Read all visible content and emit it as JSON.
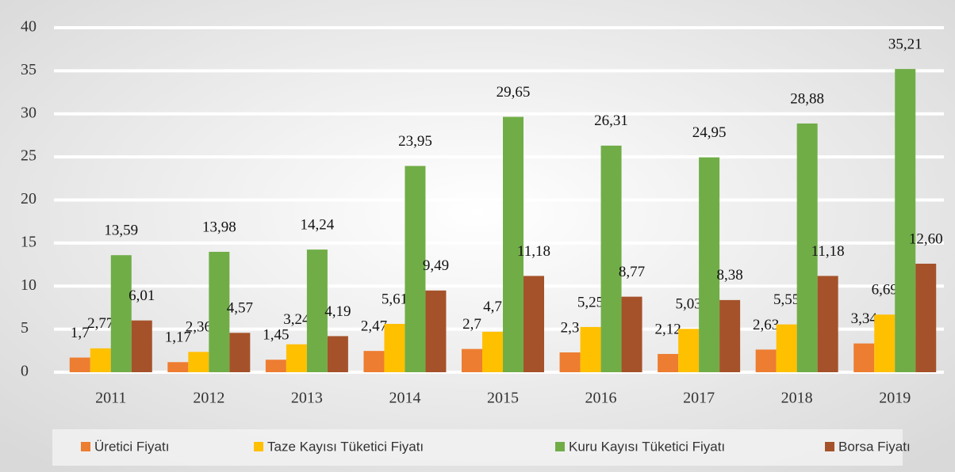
{
  "chart_data": {
    "type": "bar",
    "categories": [
      "2011",
      "2012",
      "2013",
      "2014",
      "2015",
      "2016",
      "2017",
      "2018",
      "2019"
    ],
    "series": [
      {
        "name": "Üretici Fiyatı",
        "color": "#ed7d31",
        "values": [
          1.7,
          1.17,
          1.45,
          2.47,
          2.7,
          2.3,
          2.12,
          2.63,
          3.34
        ],
        "value_labels": [
          "1,7",
          "1,17",
          "1,45",
          "2,47",
          "2,7",
          "2,3",
          "2,12",
          "2,63",
          "3,34"
        ]
      },
      {
        "name": "Taze Kayısı Tüketici Fiyatı",
        "color": "#ffc000",
        "values": [
          2.77,
          2.36,
          3.24,
          5.61,
          4.7,
          5.25,
          5.03,
          5.55,
          6.69
        ],
        "value_labels": [
          "2,77",
          "2,36",
          "3,24",
          "5,61",
          "4,7",
          "5,25",
          "5,03",
          "5,55",
          "6,69"
        ]
      },
      {
        "name": "Kuru Kayısı Tüketici Fiyatı",
        "color": "#70ad47",
        "values": [
          13.59,
          13.98,
          14.24,
          23.95,
          29.65,
          26.31,
          24.95,
          28.88,
          35.21
        ],
        "value_labels": [
          "13,59",
          "13,98",
          "14,24",
          "23,95",
          "29,65",
          "26,31",
          "24,95",
          "28,88",
          "35,21"
        ]
      },
      {
        "name": "Borsa Fiyatı",
        "color": "#a5522a",
        "values": [
          6.01,
          4.57,
          4.19,
          9.49,
          11.18,
          8.77,
          8.38,
          11.18,
          12.6
        ],
        "value_labels": [
          "6,01",
          "4,57",
          "4,19",
          "9,49",
          "11,18",
          "8,77",
          "8,38",
          "11,18",
          "12,60"
        ]
      }
    ],
    "ylim": [
      0,
      40
    ],
    "yticks": [
      0,
      5,
      10,
      15,
      20,
      25,
      30,
      35,
      40
    ],
    "grid": true,
    "legend": "bottom"
  }
}
